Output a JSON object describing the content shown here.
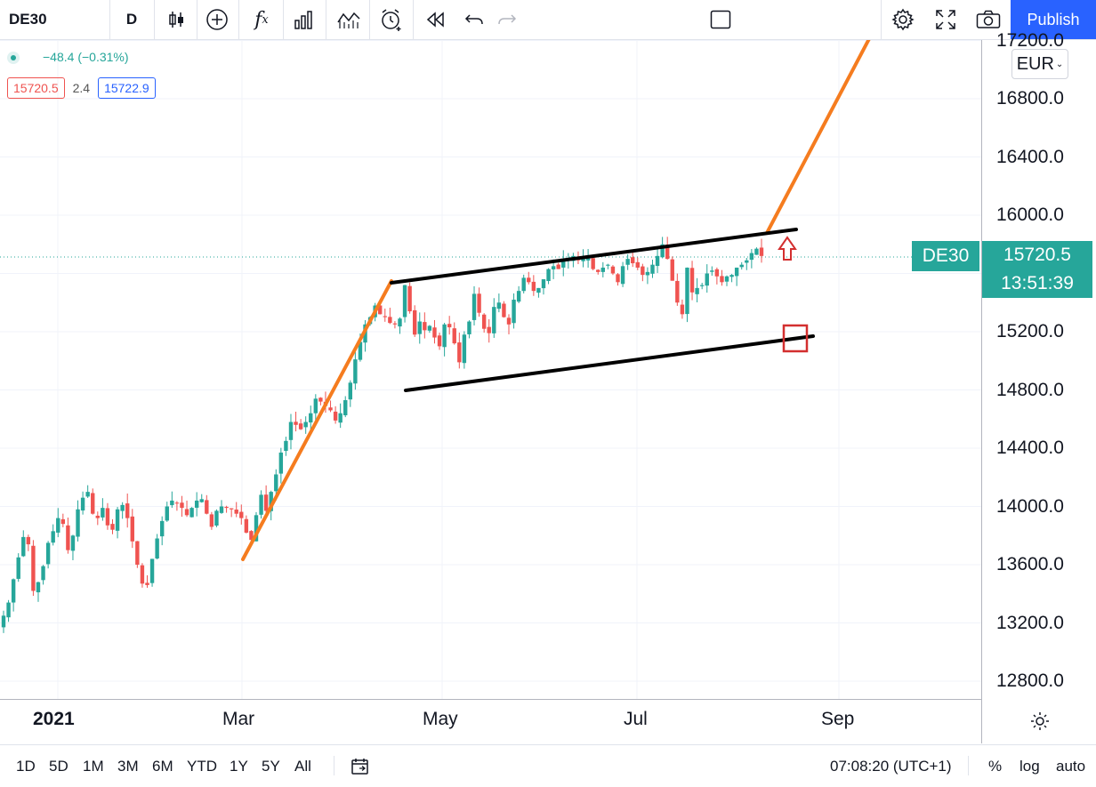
{
  "toolbar": {
    "symbol": "DE30",
    "interval": "D",
    "publish": "Publish"
  },
  "legend": {
    "change": "−48.4 (−0.31%)",
    "sell": "15720.5",
    "spread": "2.4",
    "buy": "15722.9"
  },
  "currency": "EUR",
  "price_label": {
    "symbol": "DE30",
    "price": "15720.5",
    "countdown": "13:51:39"
  },
  "bottom": {
    "ranges": [
      "1D",
      "5D",
      "1M",
      "3M",
      "6M",
      "YTD",
      "1Y",
      "5Y",
      "All"
    ],
    "clock": "07:08:20 (UTC+1)",
    "percent": "%",
    "log": "log",
    "auto": "auto"
  },
  "colors": {
    "up": "#26a69a",
    "down": "#ef5350",
    "trend": "#f57c1f",
    "channel": "#000000",
    "marker": "#d32f2f"
  },
  "chart_data": {
    "type": "candlestick",
    "ylim": [
      12600,
      17400
    ],
    "yticks": [
      "17200.0",
      "16800.0",
      "16400.0",
      "16000.0",
      "15600.0",
      "15200.0",
      "14800.0",
      "14400.0",
      "14000.0",
      "13600.0",
      "13200.0",
      "12800.0"
    ],
    "x_labels": [
      "2021",
      "Mar",
      "May",
      "Jul",
      "Sep"
    ],
    "last_price": 15720.5,
    "series": [
      {
        "values": [
          13250,
          13340,
          13500,
          13650,
          13790,
          13740,
          13420,
          13480,
          13590,
          13750,
          13830,
          13920,
          13880,
          13700,
          13800,
          13980,
          14060,
          14100,
          13950,
          13920,
          13990,
          13870,
          13840,
          13980,
          14010,
          13920,
          13760,
          13600,
          13470,
          13460,
          13640,
          13780,
          13900,
          14000,
          14040,
          14020,
          13990,
          13940,
          13990,
          14040,
          14050,
          13950,
          13860,
          13970,
          14000,
          13990,
          13980,
          13950,
          13920,
          13820,
          13770,
          13940,
          14080,
          13970,
          14100,
          14220,
          14370,
          14450,
          14580,
          14560,
          14530,
          14580,
          14640,
          14740,
          14720,
          14690,
          14660,
          14590,
          14640,
          14730,
          14850,
          15010,
          15130,
          15250,
          15300,
          15380,
          15320,
          15300,
          15260,
          15250,
          15290,
          15520,
          15340,
          15180,
          15270,
          15210,
          15240,
          15160,
          15100,
          15250,
          15230,
          15120,
          14990,
          15180,
          15270,
          15460,
          15330,
          15220,
          15190,
          15370,
          15400,
          15300,
          15250,
          15420,
          15480,
          15570,
          15540,
          15480,
          15500,
          15560,
          15630,
          15650,
          15630,
          15690,
          15700,
          15720,
          15690,
          15700,
          15720,
          15630,
          15610,
          15640,
          15660,
          15600,
          15540,
          15650,
          15700,
          15670,
          15640,
          15590,
          15610,
          15660,
          15720,
          15800,
          15700,
          15550,
          15400,
          15320,
          15640,
          15470,
          15500,
          15520,
          15600,
          15620,
          15580,
          15540,
          15580,
          15590,
          15640,
          15660,
          15690,
          15740,
          15770,
          15720
        ]
      }
    ],
    "overlays": [
      "orange uptrend line",
      "orange trendline",
      "channel upper line",
      "channel lower line",
      "arrow up marker",
      "square marker"
    ]
  }
}
